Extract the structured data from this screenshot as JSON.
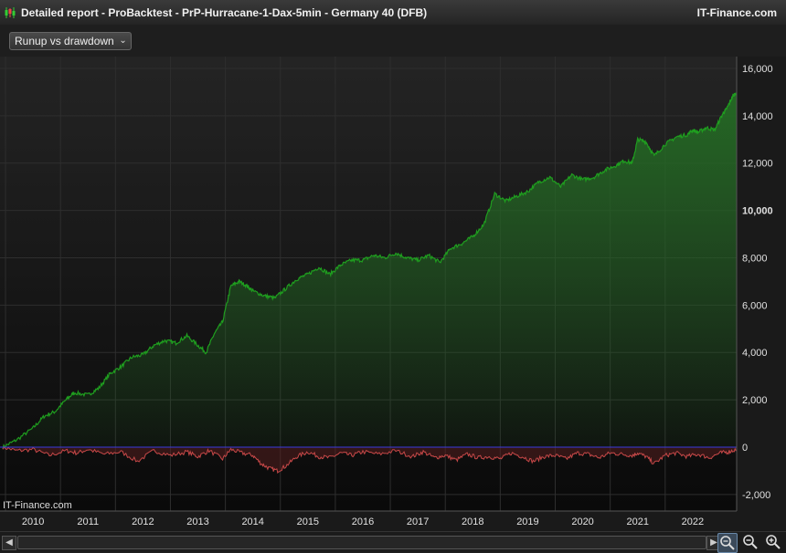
{
  "window": {
    "title": "Detailed report - ProBacktest - PrP-Hurracane-1-Dax-5min - Germany 40 (DFB)",
    "brand": "IT-Finance.com"
  },
  "toolbar": {
    "view_select": "Runup vs drawdown"
  },
  "watermark": "IT-Finance.com",
  "colors": {
    "runup_line": "#1f9e1f",
    "runup_fill_top": "#246b24",
    "drawdown_line": "#c84848",
    "zero_line": "#3a3ae0",
    "background": "#101010",
    "grid": "#2e2e2e"
  },
  "icons": {
    "app": "candlestick-chart-icon",
    "scroll_left": "chevron-left-icon",
    "scroll_right": "chevron-right-icon",
    "zoom_reset": "magnifier-reset-icon",
    "zoom_out": "zoom-out-icon",
    "zoom_in": "zoom-in-icon"
  },
  "chart_data": {
    "type": "area",
    "x_tick_labels": [
      "2010",
      "2011",
      "2012",
      "2013",
      "2014",
      "2015",
      "2016",
      "2017",
      "2018",
      "2019",
      "2020",
      "2021",
      "2022"
    ],
    "y_tick_labels": [
      "16,000",
      "14,000",
      "12,000",
      "10,000",
      "8,000",
      "6,000",
      "4,000",
      "2,000",
      "0",
      "-2,000"
    ],
    "y_ticks": [
      16000,
      14000,
      12000,
      10000,
      8000,
      6000,
      4000,
      2000,
      0,
      -2000
    ],
    "highlight_tick": "10,000",
    "ylim": [
      -2700,
      16500
    ],
    "xlim": [
      2009.4,
      2022.8
    ],
    "grid": true,
    "series": [
      {
        "kind": "runup",
        "x": [
          2009.45,
          2009.7,
          2010.0,
          2010.2,
          2010.4,
          2010.6,
          2010.75,
          2011.0,
          2011.2,
          2011.4,
          2011.6,
          2011.8,
          2012.0,
          2012.2,
          2012.4,
          2012.6,
          2012.8,
          2013.0,
          2013.15,
          2013.3,
          2013.45,
          2013.6,
          2013.75,
          2013.9,
          2014.0,
          2014.2,
          2014.4,
          2014.6,
          2014.8,
          2015.0,
          2015.2,
          2015.4,
          2015.6,
          2015.8,
          2016.0,
          2016.2,
          2016.4,
          2016.6,
          2016.8,
          2017.0,
          2017.2,
          2017.4,
          2017.6,
          2017.8,
          2018.0,
          2018.2,
          2018.4,
          2018.6,
          2018.8,
          2019.0,
          2019.2,
          2019.4,
          2019.6,
          2019.8,
          2020.0,
          2020.2,
          2020.4,
          2020.6,
          2020.75,
          2020.9,
          2021.0,
          2021.15,
          2021.3,
          2021.5,
          2021.7,
          2021.9,
          2022.0,
          2022.1,
          2022.25,
          2022.4,
          2022.55,
          2022.62,
          2022.72,
          2022.8
        ],
        "y": [
          0,
          300,
          800,
          1300,
          1500,
          2000,
          2300,
          2200,
          2500,
          3100,
          3400,
          3800,
          3900,
          4300,
          4500,
          4400,
          4700,
          4300,
          4000,
          4800,
          5300,
          6800,
          7000,
          6800,
          6600,
          6400,
          6300,
          6700,
          7100,
          7300,
          7600,
          7300,
          7700,
          7900,
          7900,
          8100,
          8000,
          8200,
          8000,
          7900,
          8100,
          7800,
          8400,
          8600,
          8900,
          9400,
          10700,
          10400,
          10600,
          10800,
          11200,
          11400,
          11000,
          11500,
          11300,
          11400,
          11700,
          11900,
          12100,
          12000,
          13000,
          12900,
          12300,
          12800,
          13100,
          13200,
          13400,
          13300,
          13500,
          13400,
          14100,
          14300,
          14800,
          15000
        ]
      },
      {
        "kind": "drawdown",
        "x": [
          2009.45,
          2009.7,
          2010.0,
          2010.3,
          2010.6,
          2010.8,
          2011.0,
          2011.3,
          2011.6,
          2011.9,
          2012.2,
          2012.5,
          2012.8,
          2013.0,
          2013.2,
          2013.45,
          2013.6,
          2013.8,
          2014.0,
          2014.15,
          2014.3,
          2014.45,
          2014.6,
          2014.8,
          2015.0,
          2015.2,
          2015.4,
          2015.6,
          2015.8,
          2016.0,
          2016.3,
          2016.6,
          2016.9,
          2017.1,
          2017.3,
          2017.5,
          2017.7,
          2017.9,
          2018.1,
          2018.3,
          2018.5,
          2018.7,
          2018.9,
          2019.1,
          2019.3,
          2019.5,
          2019.7,
          2019.9,
          2020.1,
          2020.3,
          2020.5,
          2020.7,
          2020.9,
          2021.0,
          2021.15,
          2021.3,
          2021.5,
          2021.7,
          2021.9,
          2022.1,
          2022.3,
          2022.5,
          2022.65,
          2022.8
        ],
        "y": [
          0,
          -150,
          -100,
          -350,
          -150,
          -250,
          -100,
          -300,
          -200,
          -600,
          -150,
          -350,
          -200,
          -400,
          -150,
          -500,
          -100,
          -250,
          -350,
          -700,
          -900,
          -1000,
          -800,
          -400,
          -200,
          -400,
          -450,
          -250,
          -350,
          -200,
          -300,
          -150,
          -400,
          -200,
          -450,
          -350,
          -550,
          -300,
          -450,
          -400,
          -500,
          -250,
          -400,
          -600,
          -400,
          -350,
          -500,
          -250,
          -300,
          -450,
          -250,
          -300,
          -350,
          -250,
          -400,
          -700,
          -350,
          -250,
          -400,
          -300,
          -450,
          -250,
          -200,
          -100
        ]
      }
    ]
  }
}
